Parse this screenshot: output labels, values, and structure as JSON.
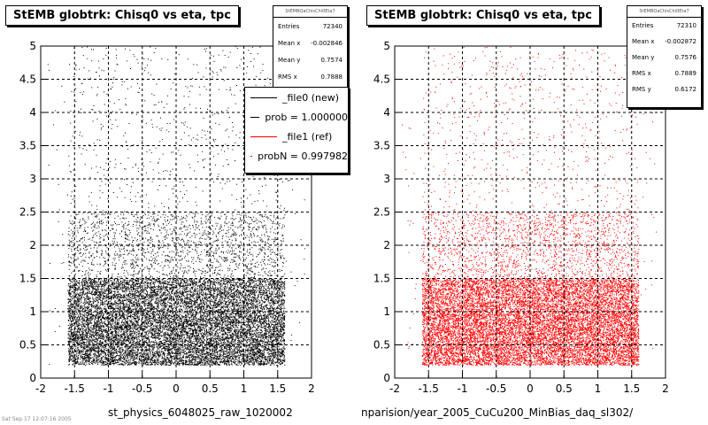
{
  "panels": [
    {
      "title": "StEMB globtrk: Chisq0 vs eta, tpc",
      "stats_header": "StEMBQaChisChi0Eta7",
      "stats": [
        {
          "label": "Entries",
          "value": "72340"
        },
        {
          "label": "Mean x",
          "value": "-0.002846"
        },
        {
          "label": "Mean y",
          "value": "0.7574"
        },
        {
          "label": "RMS x",
          "value": "0.7888"
        }
      ],
      "xcaption": "st_physics_6048025_raw_1020002",
      "legend": [
        {
          "label": "_file0 (new)",
          "color": "#000000"
        },
        {
          "label": "prob = 1.000000",
          "color": "#000000"
        },
        {
          "label": "_file1 (ref)",
          "color": "#ff0000"
        },
        {
          "label": "probN = 0.997982",
          "color": "#ff0000"
        }
      ]
    },
    {
      "title": "StEMB globtrk: Chisq0 vs eta, tpc",
      "stats_header": "StEMBQaChisChi0Eta7",
      "stats": [
        {
          "label": "Entries",
          "value": "72310"
        },
        {
          "label": "Mean x",
          "value": "-0.002872"
        },
        {
          "label": "Mean y",
          "value": "0.7576"
        },
        {
          "label": "RMS x",
          "value": "0.7889"
        },
        {
          "label": "RMS y",
          "value": "0.6172"
        }
      ],
      "xcaption": "nparision/year_2005_CuCu200_MinBias_daq_sl302/"
    }
  ],
  "corner_text": "Sat Sep 17 12:07:16 2005",
  "chart_data": [
    {
      "type": "scatter",
      "title": "StEMB globtrk: Chisq0 vs eta, tpc",
      "xlim": [
        -2,
        2
      ],
      "ylim": [
        0,
        5
      ],
      "xticks": [
        "-2",
        "-1.5",
        "-1",
        "-0.5",
        "0",
        "0.5",
        "1",
        "1.5",
        "2"
      ],
      "yticks": [
        "0",
        "0.5",
        "1",
        "1.5",
        "2",
        "2.5",
        "3",
        "3.5",
        "4",
        "4.5",
        "5"
      ],
      "grid": true,
      "color": "#000000",
      "density_bands": [
        {
          "y": [
            0.2,
            1.0
          ],
          "level": 1.0
        },
        {
          "y": [
            1.0,
            1.5
          ],
          "level": 0.55
        },
        {
          "y": [
            1.5,
            2.5
          ],
          "level": 0.2
        },
        {
          "y": [
            2.5,
            5.0
          ],
          "level": 0.05
        }
      ],
      "eta_range": [
        -1.6,
        1.6
      ]
    },
    {
      "type": "scatter",
      "title": "StEMB globtrk: Chisq0 vs eta, tpc",
      "xlim": [
        -2,
        2
      ],
      "ylim": [
        0,
        5
      ],
      "xticks": [
        "-2",
        "-1.5",
        "-1",
        "-0.5",
        "0",
        "0.5",
        "1",
        "1.5",
        "2"
      ],
      "yticks": [
        "0",
        "0.5",
        "1",
        "1.5",
        "2",
        "2.5",
        "3",
        "3.5",
        "4",
        "4.5",
        "5"
      ],
      "grid": true,
      "color": "#ff0000",
      "density_bands": [
        {
          "y": [
            0.2,
            1.0
          ],
          "level": 1.0
        },
        {
          "y": [
            1.0,
            1.5
          ],
          "level": 0.55
        },
        {
          "y": [
            1.5,
            2.5
          ],
          "level": 0.2
        },
        {
          "y": [
            2.5,
            5.0
          ],
          "level": 0.05
        }
      ],
      "eta_range": [
        -1.6,
        1.6
      ]
    }
  ]
}
